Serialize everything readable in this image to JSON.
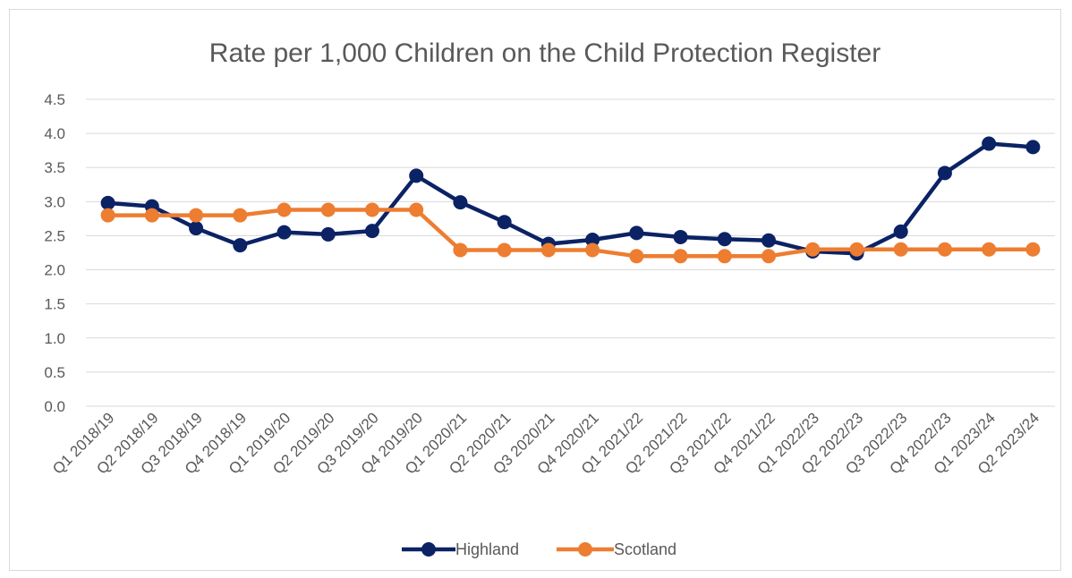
{
  "chart_data": {
    "type": "line",
    "title": "Rate per 1,000 Children on the Child Protection Register",
    "xlabel": "",
    "ylabel": "",
    "ylim": [
      0,
      4.5
    ],
    "yticks": [
      "0.0",
      "0.5",
      "1.0",
      "1.5",
      "2.0",
      "2.5",
      "3.0",
      "3.5",
      "4.0",
      "4.5"
    ],
    "grid": true,
    "legend_position": "bottom",
    "categories": [
      "Q1 2018/19",
      "Q2 2018/19",
      "Q3 2018/19",
      "Q4 2018/19",
      "Q1 2019/20",
      "Q2 2019/20",
      "Q3 2019/20",
      "Q4 2019/20",
      "Q1 2020/21",
      "Q2 2020/21",
      "Q3 2020/21",
      "Q4 2020/21",
      "Q1 2021/22",
      "Q2 2021/22",
      "Q3 2021/22",
      "Q4 2021/22",
      "Q1 2022/23",
      "Q2 2022/23",
      "Q3 2022/23",
      "Q4 2022/23",
      "Q1 2023/24",
      "Q2 2023/24"
    ],
    "series": [
      {
        "name": "Highland",
        "color": "#0b2265",
        "values": [
          2.98,
          2.93,
          2.61,
          2.36,
          2.55,
          2.52,
          2.57,
          3.38,
          2.99,
          2.7,
          2.38,
          2.44,
          2.54,
          2.48,
          2.45,
          2.43,
          2.27,
          2.24,
          2.56,
          3.42,
          3.85,
          3.8
        ]
      },
      {
        "name": "Scotland",
        "color": "#ed7d31",
        "values": [
          2.8,
          2.8,
          2.8,
          2.8,
          2.88,
          2.88,
          2.88,
          2.88,
          2.29,
          2.29,
          2.29,
          2.29,
          2.2,
          2.2,
          2.2,
          2.2,
          2.3,
          2.3,
          2.3,
          2.3,
          2.3,
          2.3
        ]
      }
    ]
  }
}
